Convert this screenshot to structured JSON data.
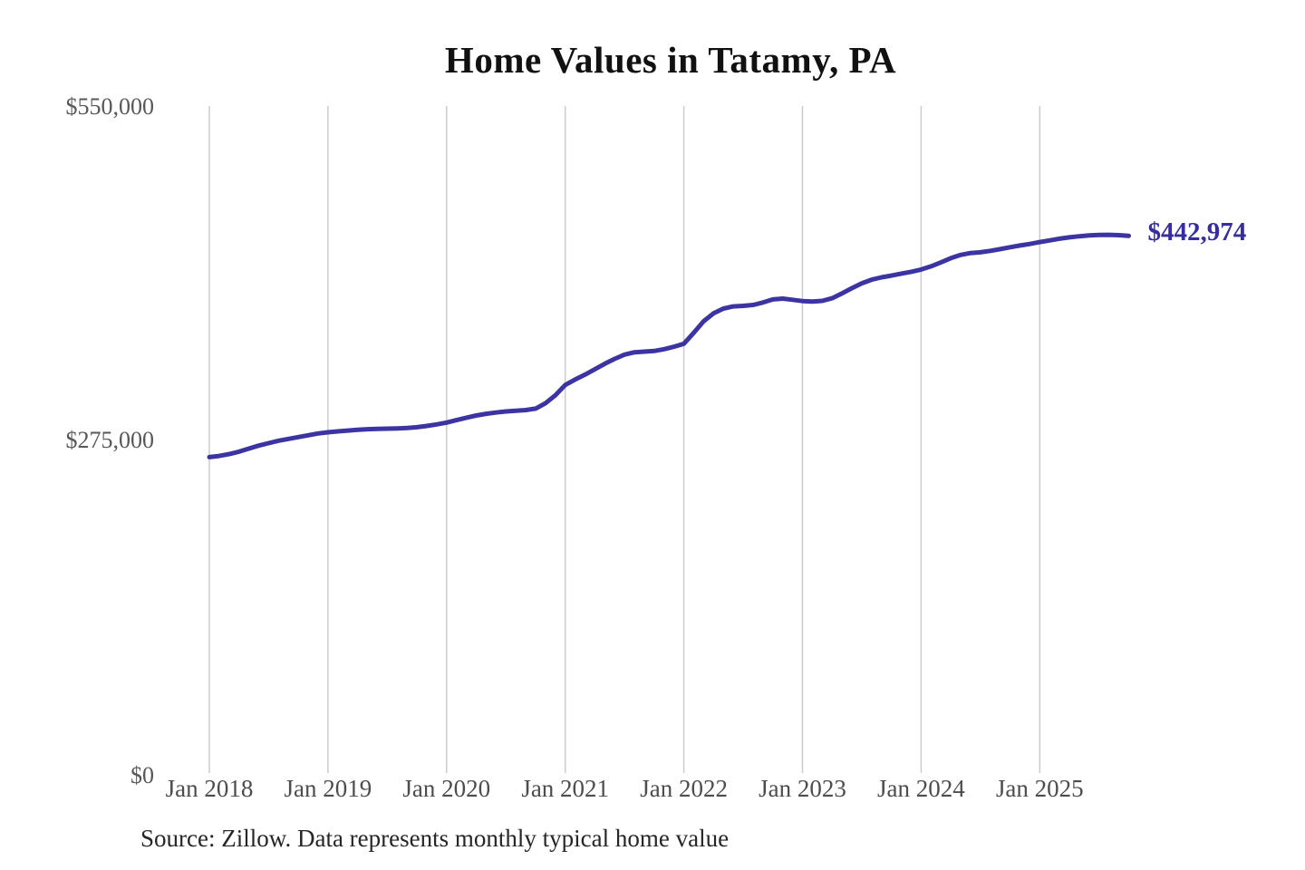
{
  "chart_data": {
    "type": "line",
    "title": "Home Values in Tatamy, PA",
    "source_note": "Source: Zillow. Data represents monthly typical home value",
    "end_label": "$442,974",
    "latest_value": 442974,
    "x_tick_labels": [
      "Jan 2018",
      "Jan 2019",
      "Jan 2020",
      "Jan 2021",
      "Jan 2022",
      "Jan 2023",
      "Jan 2024",
      "Jan 2025"
    ],
    "y_tick_labels": [
      "$0",
      "$275,000",
      "$550,000"
    ],
    "ylim": [
      0,
      550000
    ],
    "grid": "vertical-only",
    "legend": "none",
    "series": [
      {
        "name": "Typical home value",
        "months": [
          "2018-01",
          "2018-02",
          "2018-03",
          "2018-04",
          "2018-05",
          "2018-06",
          "2018-07",
          "2018-08",
          "2018-09",
          "2018-10",
          "2018-11",
          "2018-12",
          "2019-01",
          "2019-02",
          "2019-03",
          "2019-04",
          "2019-05",
          "2019-06",
          "2019-07",
          "2019-08",
          "2019-09",
          "2019-10",
          "2019-11",
          "2019-12",
          "2020-01",
          "2020-02",
          "2020-03",
          "2020-04",
          "2020-05",
          "2020-06",
          "2020-07",
          "2020-08",
          "2020-09",
          "2020-10",
          "2020-11",
          "2020-12",
          "2021-01",
          "2021-02",
          "2021-03",
          "2021-04",
          "2021-05",
          "2021-06",
          "2021-07",
          "2021-08",
          "2021-09",
          "2021-10",
          "2021-11",
          "2021-12",
          "2022-01",
          "2022-02",
          "2022-03",
          "2022-04",
          "2022-05",
          "2022-06",
          "2022-07",
          "2022-08",
          "2022-09",
          "2022-10",
          "2022-11",
          "2022-12",
          "2023-01",
          "2023-02",
          "2023-03",
          "2023-04",
          "2023-05",
          "2023-06",
          "2023-07",
          "2023-08",
          "2023-09",
          "2023-10",
          "2023-11",
          "2023-12",
          "2024-01",
          "2024-02",
          "2024-03",
          "2024-04",
          "2024-05",
          "2024-06",
          "2024-07",
          "2024-08",
          "2024-09",
          "2024-10",
          "2024-11",
          "2024-12",
          "2025-01",
          "2025-02",
          "2025-03",
          "2025-04",
          "2025-05",
          "2025-06",
          "2025-07",
          "2025-08",
          "2025-09",
          "2025-10"
        ],
        "values": [
          260500,
          261500,
          263000,
          265000,
          267500,
          270000,
          272000,
          274000,
          275500,
          277000,
          278500,
          280000,
          281000,
          281700,
          282400,
          283000,
          283500,
          283800,
          284000,
          284200,
          284500,
          285200,
          286200,
          287500,
          289000,
          291000,
          293000,
          294800,
          296200,
          297300,
          298200,
          298800,
          299300,
          300500,
          305000,
          311500,
          320000,
          324500,
          328500,
          333000,
          337500,
          341500,
          345000,
          347000,
          347500,
          348000,
          349500,
          351500,
          354000,
          363000,
          372500,
          379000,
          383000,
          384800,
          385200,
          386000,
          388000,
          390500,
          391200,
          390200,
          389200,
          388700,
          389300,
          391500,
          395500,
          399800,
          403800,
          406800,
          408800,
          410200,
          411800,
          413300,
          415200,
          417800,
          421000,
          424500,
          427200,
          428800,
          429400,
          430600,
          432000,
          433600,
          435000,
          436300,
          437800,
          439200,
          440600,
          441700,
          442600,
          443300,
          443700,
          443800,
          443500,
          442974
        ]
      }
    ],
    "colors": {
      "line": "#3b34a2",
      "end_label": "#352da0",
      "gridline": "#cccccc",
      "axis_text": "#4d4d4d",
      "y_axis_text": "#585858",
      "title_text": "#111111",
      "source_text": "#262626",
      "background": "#ffffff"
    }
  }
}
